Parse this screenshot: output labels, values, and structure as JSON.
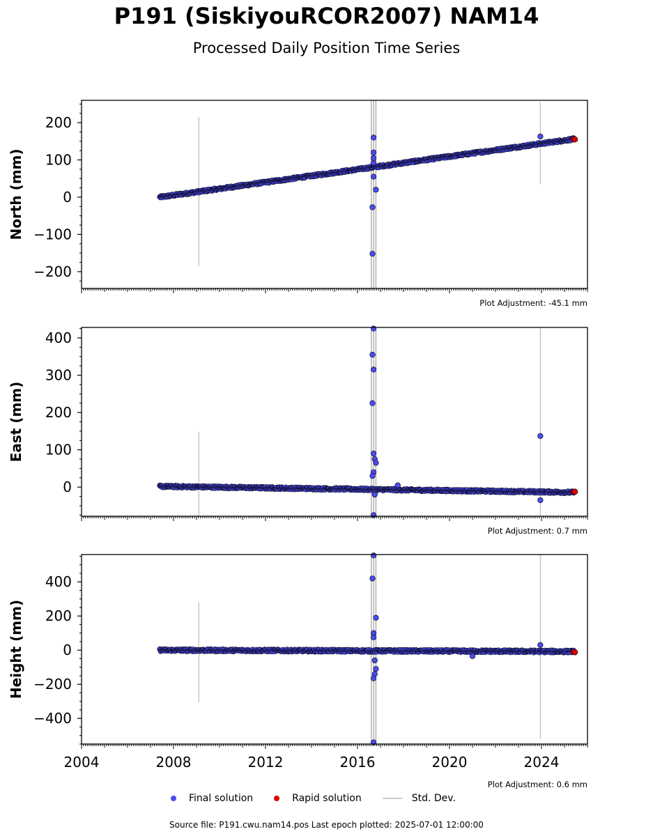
{
  "header": {
    "title": "P191 (SiskiyouRCOR2007) NAM14",
    "subtitle": "Processed Daily Position Time Series"
  },
  "legend": {
    "final_label": "Final solution",
    "rapid_label": "Rapid solution",
    "std_label": "Std. Dev."
  },
  "footer": {
    "source": "Source file: P191.cwu.nam14.pos  Last epoch plotted: 2025-07-01 12:00:00"
  },
  "colors": {
    "final": "#4b4bf0",
    "rapid": "#e00000",
    "std_dev": "#bbbbbb",
    "edge": "#000000"
  },
  "chart_data": [
    {
      "type": "scatter",
      "ylabel": "North (mm)",
      "adjustment": "Plot Adjustment: -45.1 mm",
      "xlim": [
        2004.0,
        2026.0
      ],
      "ylim": [
        -245,
        260
      ],
      "yticks": [
        -200,
        -100,
        0,
        100,
        200
      ],
      "trend": {
        "start_year": 2007.4,
        "end_year": 2025.4,
        "start_value": 0,
        "end_value": 156,
        "noise": 3
      },
      "outliers": [
        [
          2016.7,
          160
        ],
        [
          2016.7,
          120
        ],
        [
          2016.7,
          105
        ],
        [
          2016.7,
          92
        ],
        [
          2016.7,
          55
        ],
        [
          2016.8,
          20
        ],
        [
          2016.65,
          -27
        ],
        [
          2016.65,
          -152
        ],
        [
          2023.95,
          163
        ]
      ],
      "rapid_points": [
        [
          2025.4,
          156
        ],
        [
          2025.45,
          155
        ]
      ],
      "std_bars": [
        [
          2009.1,
          -185,
          215
        ],
        [
          2023.95,
          35,
          255
        ],
        [
          2016.6,
          -245,
          260
        ],
        [
          2016.7,
          -245,
          260
        ],
        [
          2016.8,
          -245,
          260
        ]
      ],
      "show_xtick_labels": false
    },
    {
      "type": "scatter",
      "ylabel": "East (mm)",
      "adjustment": "Plot Adjustment: 0.7 mm",
      "xlim": [
        2004.0,
        2026.0
      ],
      "ylim": [
        -78,
        428
      ],
      "yticks": [
        0,
        100,
        200,
        300,
        400
      ],
      "trend": {
        "start_year": 2007.4,
        "end_year": 2025.4,
        "start_value": 2,
        "end_value": -14,
        "noise": 3
      },
      "outliers": [
        [
          2016.7,
          425
        ],
        [
          2016.65,
          355
        ],
        [
          2016.7,
          315
        ],
        [
          2016.65,
          225
        ],
        [
          2016.7,
          90
        ],
        [
          2016.75,
          75
        ],
        [
          2016.8,
          65
        ],
        [
          2016.7,
          40
        ],
        [
          2016.65,
          30
        ],
        [
          2016.75,
          -20
        ],
        [
          2016.7,
          -75
        ],
        [
          2017.75,
          5
        ],
        [
          2023.95,
          137
        ],
        [
          2023.95,
          -35
        ]
      ],
      "rapid_points": [
        [
          2025.4,
          -13
        ],
        [
          2025.45,
          -12
        ]
      ],
      "std_bars": [
        [
          2009.1,
          -78,
          148
        ],
        [
          2023.95,
          -78,
          428
        ],
        [
          2016.6,
          -78,
          428
        ],
        [
          2016.7,
          -78,
          428
        ],
        [
          2016.8,
          -78,
          428
        ]
      ],
      "show_xtick_labels": false
    },
    {
      "type": "scatter",
      "ylabel": "Height (mm)",
      "adjustment": "Plot Adjustment: 0.6 mm",
      "xlim": [
        2004.0,
        2026.0
      ],
      "ylim": [
        -550,
        560
      ],
      "yticks": [
        -400,
        -200,
        0,
        200,
        400
      ],
      "xticks": [
        2004,
        2008,
        2012,
        2016,
        2020,
        2024
      ],
      "trend": {
        "start_year": 2007.4,
        "end_year": 2025.4,
        "start_value": 0,
        "end_value": -8,
        "noise": 7
      },
      "outliers": [
        [
          2016.7,
          555
        ],
        [
          2016.65,
          420
        ],
        [
          2016.8,
          190
        ],
        [
          2016.7,
          100
        ],
        [
          2016.7,
          75
        ],
        [
          2016.75,
          -60
        ],
        [
          2016.8,
          -110
        ],
        [
          2016.75,
          -140
        ],
        [
          2016.7,
          -165
        ],
        [
          2016.7,
          -540
        ],
        [
          2021.0,
          -35
        ],
        [
          2023.95,
          30
        ]
      ],
      "rapid_points": [
        [
          2025.4,
          -10
        ],
        [
          2025.45,
          -12
        ]
      ],
      "std_bars": [
        [
          2009.1,
          -305,
          280
        ],
        [
          2023.95,
          -520,
          560
        ],
        [
          2016.6,
          -550,
          560
        ],
        [
          2016.7,
          -550,
          560
        ],
        [
          2016.8,
          -550,
          560
        ]
      ],
      "show_xtick_labels": true
    }
  ]
}
